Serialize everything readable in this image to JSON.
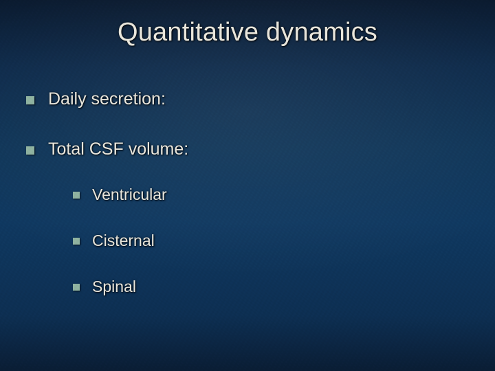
{
  "slide": {
    "title": "Quantitative dynamics",
    "title_color": "#e9e6dc",
    "title_fontsize": 38,
    "body_fontsize_l1": 25,
    "body_fontsize_l2": 23,
    "text_color": "#e9e6dc",
    "background": {
      "type": "gradient",
      "colors": [
        "#0a1a2f",
        "#0d2a4a",
        "#0f3558",
        "#0f3860",
        "#0d2f52",
        "#0a1d34"
      ]
    },
    "bullet": {
      "shape": "square",
      "color_l1": "#8fb2a0",
      "color_l2": "#8fb2a0",
      "size_l1": 12,
      "size_l2": 10
    },
    "items": [
      {
        "label": "Daily secretion:",
        "children": []
      },
      {
        "label": "Total CSF volume:",
        "children": [
          {
            "label": "Ventricular"
          },
          {
            "label": "Cisternal"
          },
          {
            "label": "Spinal"
          }
        ]
      }
    ]
  }
}
